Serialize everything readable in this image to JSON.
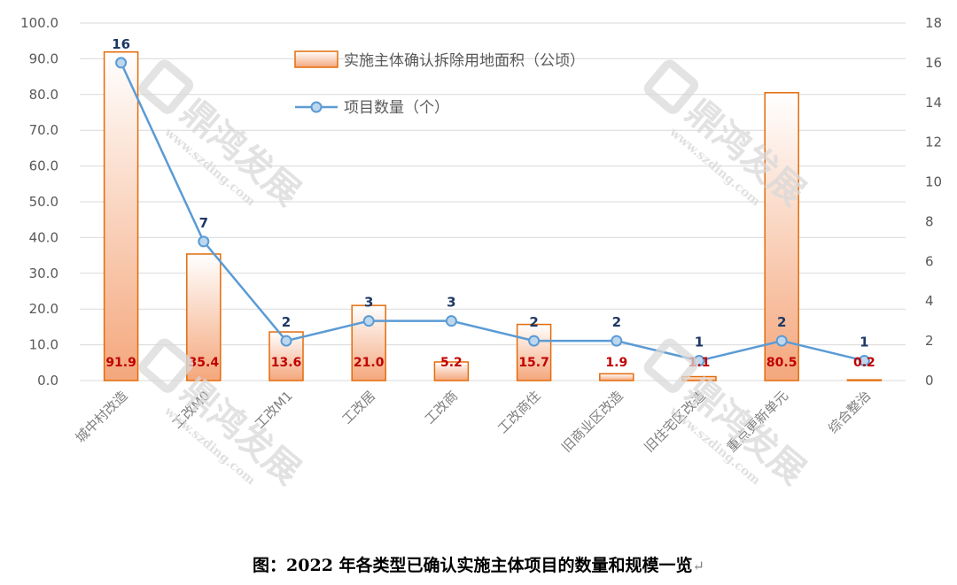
{
  "chart_data": {
    "type": "bar+line",
    "categories": [
      "城中村改造",
      "工改M0",
      "工改M1",
      "工改居",
      "工改商",
      "工改商住",
      "旧商业区改造",
      "旧住宅区改造",
      "重点更新单元",
      "综合整治"
    ],
    "series": [
      {
        "name": "实施主体确认拆除用地面积（公顷）",
        "type": "bar",
        "axis": "left",
        "values": [
          91.9,
          35.4,
          13.6,
          21.0,
          5.2,
          15.7,
          1.9,
          1.1,
          80.5,
          0.2
        ],
        "labels": [
          "91.9",
          "35.4",
          "13.6",
          "21.0",
          "5.2",
          "15.7",
          "1.9",
          "1.1",
          "80.5",
          "0.2"
        ]
      },
      {
        "name": "项目数量（个）",
        "type": "line",
        "axis": "right",
        "values": [
          16,
          7,
          2,
          3,
          3,
          2,
          2,
          1,
          2,
          1
        ],
        "labels": [
          "16",
          "7",
          "2",
          "3",
          "3",
          "2",
          "2",
          "1",
          "2",
          "1"
        ]
      }
    ],
    "y_left": {
      "min": 0,
      "max": 100,
      "step": 10,
      "tick_labels": [
        "0.0",
        "10.0",
        "20.0",
        "30.0",
        "40.0",
        "50.0",
        "60.0",
        "70.0",
        "80.0",
        "90.0",
        "100.0"
      ]
    },
    "y_right": {
      "min": 0,
      "max": 18,
      "step": 2,
      "tick_labels": [
        "0",
        "2",
        "4",
        "6",
        "8",
        "10",
        "12",
        "14",
        "16",
        "18"
      ]
    },
    "grid": true,
    "legend_position": "top-center"
  },
  "caption": "图：2022 年各类型已确认实施主体项目的数量和规模一览",
  "caption_mark": "↵",
  "watermark": {
    "text": "鼎鸿发展",
    "url": "www.szding.com"
  },
  "colors": {
    "bar_fill_top": "#ffffff",
    "bar_fill_bottom": "#f4a77c",
    "bar_stroke": "#e46c0a",
    "line": "#5b9bd5",
    "marker_fill": "#bdd7ee",
    "bar_label": "#c00000",
    "point_label": "#1f3864",
    "grid": "#d9d9d9"
  }
}
